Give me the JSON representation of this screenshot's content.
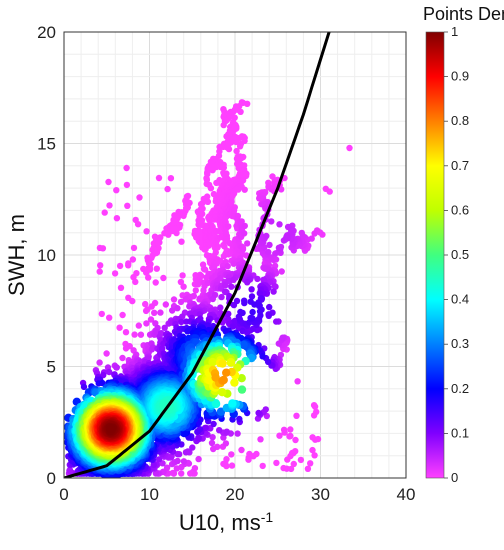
{
  "chart_data": {
    "type": "scatter",
    "title": "",
    "xlabel": "U10, ms",
    "xlabel_sup": "-1",
    "ylabel": "SWH, m",
    "xlim": [
      0,
      40
    ],
    "ylim": [
      0,
      20
    ],
    "xticks": [
      "0",
      "10",
      "20",
      "30",
      "40"
    ],
    "yticks": [
      "0",
      "5",
      "10",
      "15",
      "20"
    ],
    "grid": true,
    "colorbar": {
      "title": "Points Density",
      "ticks": [
        "0",
        "0.1",
        "0.2",
        "0.3",
        "0.4",
        "0.5",
        "0.6",
        "0.7",
        "0.8",
        "0.9",
        "1"
      ],
      "colormap": [
        "#ff40ff",
        "#8000ff",
        "#0000ff",
        "#0080ff",
        "#00ffff",
        "#40ff80",
        "#c0ff00",
        "#ffff00",
        "#ff8000",
        "#ff0000",
        "#800000"
      ]
    },
    "fit_curve": {
      "color": "#000000",
      "points": [
        [
          0,
          0
        ],
        [
          5,
          0.55
        ],
        [
          10,
          2.1
        ],
        [
          15,
          4.7
        ],
        [
          20,
          8.3
        ],
        [
          25,
          13.0
        ],
        [
          28,
          16.3
        ],
        [
          31,
          20.0
        ]
      ]
    },
    "density_clusters": [
      {
        "cx": 5.5,
        "cy": 2.2,
        "density": 1.0
      },
      {
        "cx": 18.5,
        "cy": 4.6,
        "density": 0.8
      },
      {
        "cx": 12,
        "cy": 3.2,
        "density": 0.45
      },
      {
        "cx": 16,
        "cy": 5.5,
        "density": 0.3
      },
      {
        "cx": 22,
        "cy": 7.5,
        "density": 0.15
      },
      {
        "cx": 25,
        "cy": 11,
        "density": 0.05
      }
    ]
  }
}
